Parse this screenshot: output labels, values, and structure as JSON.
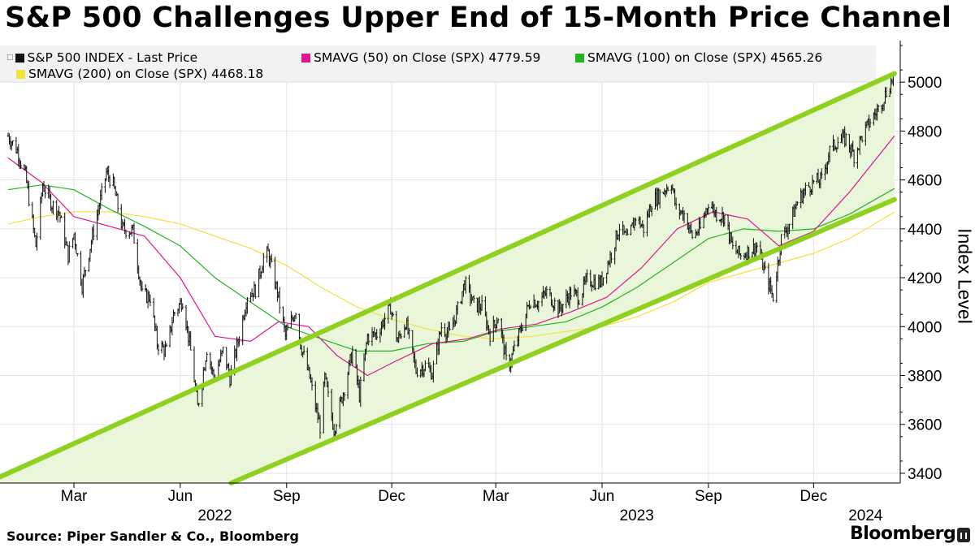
{
  "chart_data": {
    "type": "line",
    "title": "S&P 500 Challenges Upper End of 15-Month Price Channel",
    "ylabel": "Index Level",
    "ylim": [
      3360,
      5170
    ],
    "y_ticks": [
      3400,
      3600,
      3800,
      4000,
      4200,
      4400,
      4600,
      4800,
      5000
    ],
    "grid": true,
    "legend_placement": "top",
    "x_ticks": [
      {
        "label": "Mar",
        "x": "2022-03-01"
      },
      {
        "label": "Jun",
        "x": "2022-06-01"
      },
      {
        "label": "Sep",
        "x": "2022-09-01"
      },
      {
        "label": "Dec",
        "x": "2022-12-01"
      },
      {
        "label": "Mar",
        "x": "2023-03-01"
      },
      {
        "label": "Jun",
        "x": "2023-06-01"
      },
      {
        "label": "Sep",
        "x": "2023-09-01"
      },
      {
        "label": "Dec",
        "x": "2023-12-01"
      }
    ],
    "year_labels": [
      {
        "label": "2022",
        "x": "2022-07-01"
      },
      {
        "label": "2023",
        "x": "2023-07-01"
      },
      {
        "label": "2024",
        "x": "2024-01-15"
      }
    ],
    "series": [
      {
        "name": "S&P 500 INDEX - Last Price",
        "color": "#111111",
        "style": "ohlc-bars",
        "points": [
          [
            "2022-01-03",
            4780
          ],
          [
            "2022-01-11",
            4720
          ],
          [
            "2022-01-18",
            4620
          ],
          [
            "2022-01-27",
            4330
          ],
          [
            "2022-02-02",
            4580
          ],
          [
            "2022-02-10",
            4500
          ],
          [
            "2022-02-16",
            4470
          ],
          [
            "2022-02-24",
            4290
          ],
          [
            "2022-03-01",
            4380
          ],
          [
            "2022-03-08",
            4170
          ],
          [
            "2022-03-16",
            4350
          ],
          [
            "2022-03-24",
            4520
          ],
          [
            "2022-03-29",
            4630
          ],
          [
            "2022-04-04",
            4580
          ],
          [
            "2022-04-12",
            4400
          ],
          [
            "2022-04-21",
            4390
          ],
          [
            "2022-04-29",
            4130
          ],
          [
            "2022-05-06",
            4120
          ],
          [
            "2022-05-12",
            3930
          ],
          [
            "2022-05-20",
            3900
          ],
          [
            "2022-05-26",
            4050
          ],
          [
            "2022-06-03",
            4110
          ],
          [
            "2022-06-10",
            3900
          ],
          [
            "2022-06-16",
            3670
          ],
          [
            "2022-06-24",
            3910
          ],
          [
            "2022-06-30",
            3790
          ],
          [
            "2022-07-08",
            3900
          ],
          [
            "2022-07-14",
            3790
          ],
          [
            "2022-07-22",
            3960
          ],
          [
            "2022-07-29",
            4130
          ],
          [
            "2022-08-05",
            4150
          ],
          [
            "2022-08-12",
            4280
          ],
          [
            "2022-08-16",
            4300
          ],
          [
            "2022-08-24",
            4140
          ],
          [
            "2022-08-31",
            3960
          ],
          [
            "2022-09-09",
            4070
          ],
          [
            "2022-09-13",
            3930
          ],
          [
            "2022-09-21",
            3790
          ],
          [
            "2022-09-27",
            3650
          ],
          [
            "2022-09-30",
            3590
          ],
          [
            "2022-10-04",
            3790
          ],
          [
            "2022-10-12",
            3580
          ],
          [
            "2022-10-21",
            3750
          ],
          [
            "2022-10-28",
            3900
          ],
          [
            "2022-11-03",
            3720
          ],
          [
            "2022-11-10",
            3960
          ],
          [
            "2022-11-18",
            3970
          ],
          [
            "2022-11-30",
            4080
          ],
          [
            "2022-12-06",
            3940
          ],
          [
            "2022-12-13",
            4020
          ],
          [
            "2022-12-22",
            3820
          ],
          [
            "2022-12-30",
            3840
          ],
          [
            "2023-01-05",
            3810
          ],
          [
            "2023-01-13",
            4000
          ],
          [
            "2023-01-20",
            3970
          ],
          [
            "2023-01-27",
            4070
          ],
          [
            "2023-02-02",
            4180
          ],
          [
            "2023-02-10",
            4090
          ],
          [
            "2023-02-17",
            4080
          ],
          [
            "2023-02-24",
            3970
          ],
          [
            "2023-03-03",
            4040
          ],
          [
            "2023-03-10",
            3860
          ],
          [
            "2023-03-13",
            3850
          ],
          [
            "2023-03-20",
            3950
          ],
          [
            "2023-03-31",
            4110
          ],
          [
            "2023-04-07",
            4100
          ],
          [
            "2023-04-14",
            4140
          ],
          [
            "2023-04-25",
            4070
          ],
          [
            "2023-05-05",
            4140
          ],
          [
            "2023-05-12",
            4120
          ],
          [
            "2023-05-19",
            4190
          ],
          [
            "2023-05-31",
            4180
          ],
          [
            "2023-06-09",
            4300
          ],
          [
            "2023-06-16",
            4410
          ],
          [
            "2023-06-23",
            4350
          ],
          [
            "2023-06-30",
            4450
          ],
          [
            "2023-07-07",
            4400
          ],
          [
            "2023-07-14",
            4510
          ],
          [
            "2023-07-21",
            4540
          ],
          [
            "2023-07-31",
            4590
          ],
          [
            "2023-08-04",
            4480
          ],
          [
            "2023-08-11",
            4460
          ],
          [
            "2023-08-18",
            4370
          ],
          [
            "2023-08-25",
            4400
          ],
          [
            "2023-09-01",
            4510
          ],
          [
            "2023-09-08",
            4460
          ],
          [
            "2023-09-15",
            4450
          ],
          [
            "2023-09-22",
            4320
          ],
          [
            "2023-09-29",
            4290
          ],
          [
            "2023-10-06",
            4310
          ],
          [
            "2023-10-13",
            4330
          ],
          [
            "2023-10-20",
            4220
          ],
          [
            "2023-10-27",
            4120
          ],
          [
            "2023-11-03",
            4360
          ],
          [
            "2023-11-10",
            4420
          ],
          [
            "2023-11-17",
            4510
          ],
          [
            "2023-11-24",
            4560
          ],
          [
            "2023-12-01",
            4590
          ],
          [
            "2023-12-08",
            4600
          ],
          [
            "2023-12-15",
            4720
          ],
          [
            "2023-12-22",
            4760
          ],
          [
            "2023-12-29",
            4770
          ],
          [
            "2024-01-05",
            4700
          ],
          [
            "2024-01-12",
            4780
          ],
          [
            "2024-01-19",
            4840
          ],
          [
            "2024-01-26",
            4890
          ],
          [
            "2024-02-02",
            4960
          ],
          [
            "2024-02-09",
            5030
          ]
        ]
      },
      {
        "name": "SMAVG (50)  on Close (SPX) 4779.59",
        "color": "#e0158f",
        "points": [
          [
            "2022-01-03",
            4690
          ],
          [
            "2022-02-01",
            4590
          ],
          [
            "2022-03-01",
            4450
          ],
          [
            "2022-04-01",
            4410
          ],
          [
            "2022-05-01",
            4370
          ],
          [
            "2022-06-01",
            4200
          ],
          [
            "2022-07-01",
            3960
          ],
          [
            "2022-08-01",
            3940
          ],
          [
            "2022-08-25",
            4020
          ],
          [
            "2022-09-20",
            4000
          ],
          [
            "2022-10-15",
            3880
          ],
          [
            "2022-11-10",
            3800
          ],
          [
            "2022-12-05",
            3860
          ],
          [
            "2023-01-05",
            3930
          ],
          [
            "2023-02-05",
            3950
          ],
          [
            "2023-03-05",
            3990
          ],
          [
            "2023-04-05",
            4010
          ],
          [
            "2023-05-05",
            4060
          ],
          [
            "2023-06-05",
            4120
          ],
          [
            "2023-07-05",
            4240
          ],
          [
            "2023-08-05",
            4400
          ],
          [
            "2023-09-05",
            4470
          ],
          [
            "2023-10-05",
            4440
          ],
          [
            "2023-11-01",
            4330
          ],
          [
            "2023-12-01",
            4390
          ],
          [
            "2024-01-01",
            4550
          ],
          [
            "2024-02-09",
            4780
          ]
        ]
      },
      {
        "name": "SMAVG (100)  on Close (SPX) 4565.26",
        "color": "#22b522",
        "points": [
          [
            "2022-01-03",
            4560
          ],
          [
            "2022-02-01",
            4580
          ],
          [
            "2022-03-01",
            4560
          ],
          [
            "2022-04-01",
            4480
          ],
          [
            "2022-05-01",
            4410
          ],
          [
            "2022-06-01",
            4330
          ],
          [
            "2022-07-01",
            4200
          ],
          [
            "2022-08-01",
            4100
          ],
          [
            "2022-09-01",
            4000
          ],
          [
            "2022-10-01",
            3950
          ],
          [
            "2022-11-01",
            3900
          ],
          [
            "2022-12-01",
            3900
          ],
          [
            "2023-01-01",
            3930
          ],
          [
            "2023-02-01",
            3940
          ],
          [
            "2023-03-01",
            3980
          ],
          [
            "2023-04-01",
            4000
          ],
          [
            "2023-05-01",
            4020
          ],
          [
            "2023-06-01",
            4080
          ],
          [
            "2023-07-01",
            4160
          ],
          [
            "2023-08-01",
            4260
          ],
          [
            "2023-09-01",
            4360
          ],
          [
            "2023-10-01",
            4400
          ],
          [
            "2023-11-01",
            4390
          ],
          [
            "2023-12-01",
            4400
          ],
          [
            "2024-01-01",
            4460
          ],
          [
            "2024-02-09",
            4565
          ]
        ]
      },
      {
        "name": "SMAVG (200)  on Close (SPX) 4468.18",
        "color": "#f2e23c",
        "points": [
          [
            "2022-01-03",
            4420
          ],
          [
            "2022-02-01",
            4450
          ],
          [
            "2022-03-01",
            4470
          ],
          [
            "2022-04-01",
            4470
          ],
          [
            "2022-05-01",
            4450
          ],
          [
            "2022-06-01",
            4420
          ],
          [
            "2022-07-01",
            4370
          ],
          [
            "2022-08-01",
            4320
          ],
          [
            "2022-09-01",
            4250
          ],
          [
            "2022-10-01",
            4160
          ],
          [
            "2022-11-01",
            4080
          ],
          [
            "2022-12-01",
            4030
          ],
          [
            "2023-01-01",
            3990
          ],
          [
            "2023-02-01",
            3960
          ],
          [
            "2023-03-01",
            3950
          ],
          [
            "2023-04-01",
            3960
          ],
          [
            "2023-05-01",
            3980
          ],
          [
            "2023-06-01",
            4000
          ],
          [
            "2023-07-01",
            4040
          ],
          [
            "2023-08-01",
            4100
          ],
          [
            "2023-09-01",
            4180
          ],
          [
            "2023-10-01",
            4220
          ],
          [
            "2023-11-01",
            4260
          ],
          [
            "2023-12-01",
            4300
          ],
          [
            "2024-01-01",
            4360
          ],
          [
            "2024-02-09",
            4468
          ]
        ]
      }
    ],
    "channel": {
      "color": "#8fd11f",
      "fill": "#eaf6d9",
      "upper": [
        [
          "2021-12-27",
          3385
        ],
        [
          "2024-02-09",
          5035
        ]
      ],
      "lower": [
        [
          "2022-07-15",
          3360
        ],
        [
          "2024-02-09",
          4520
        ]
      ]
    }
  },
  "legend": {
    "items": [
      {
        "label": "S&P 500 INDEX - Last Price",
        "color": "#111111"
      },
      {
        "label": "SMAVG (50)  on Close (SPX) 4779.59",
        "color": "#e0158f"
      },
      {
        "label": "SMAVG (100)  on Close (SPX) 4565.26",
        "color": "#22b522"
      },
      {
        "label": "SMAVG (200)  on Close (SPX) 4468.18",
        "color": "#f2e23c"
      }
    ]
  },
  "footer": {
    "source": "Source: Piper Sandler & Co., Bloomberg",
    "brand": "Bloomberg"
  }
}
